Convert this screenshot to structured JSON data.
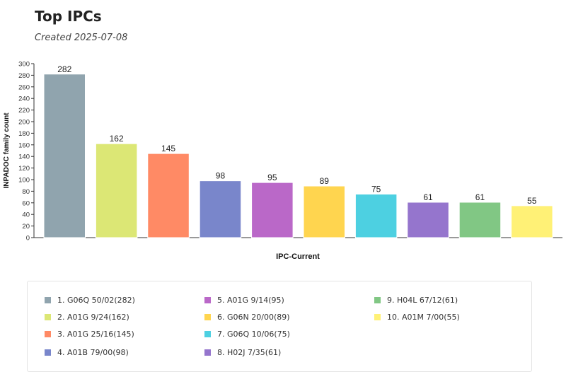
{
  "header": {
    "title": "Top IPCs",
    "subtitle": "Created 2025-07-08"
  },
  "chart_data": {
    "type": "bar",
    "title": "Top IPCs",
    "xlabel": "IPC-Current",
    "ylabel": "INPADOC family count",
    "ylim": [
      0,
      300
    ],
    "yticks": [
      0,
      20,
      40,
      60,
      80,
      100,
      120,
      140,
      160,
      180,
      200,
      220,
      240,
      260,
      280,
      300
    ],
    "categories": [
      "G06Q 50/02",
      "A01G 9/24",
      "A01G 25/16",
      "A01B 79/00",
      "A01G 9/14",
      "G06N 20/00",
      "G06Q 10/06",
      "H02J 7/35",
      "H04L 67/12",
      "A01M 7/00"
    ],
    "values": [
      282,
      162,
      145,
      98,
      95,
      89,
      75,
      61,
      61,
      55
    ],
    "colors": [
      "#90A4AE",
      "#DCE775",
      "#FF8A65",
      "#7986CB",
      "#BA68C8",
      "#FFD54F",
      "#4DD0E1",
      "#9575CD",
      "#81C784",
      "#FFF176"
    ],
    "legend": [
      "1. G06Q 50/02(282)",
      "2. A01G 9/24(162)",
      "3. A01G 25/16(145)",
      "4. A01B 79/00(98)",
      "5. A01G 9/14(95)",
      "6. G06N 20/00(89)",
      "7. G06Q 10/06(75)",
      "8. H02J 7/35(61)",
      "9. H04L 67/12(61)",
      "10. A01M 7/00(55)"
    ],
    "legend_placement": "bottom",
    "grid": false
  }
}
